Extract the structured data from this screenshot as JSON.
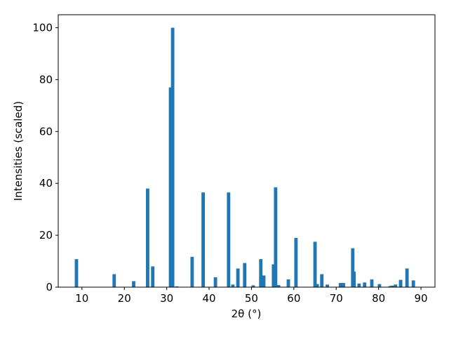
{
  "chart_data": {
    "type": "bar",
    "x_label": "2θ (°)",
    "y_label": "Intensities (scaled)",
    "color": "#1f77b4",
    "x": [
      8.7,
      17.6,
      22.2,
      25.5,
      26.7,
      30.9,
      31.4,
      32.4,
      36.0,
      38.6,
      41.5,
      44.6,
      45.6,
      46.8,
      48.4,
      50.4,
      52.2,
      52.9,
      55.2,
      55.7,
      56.4,
      58.7,
      60.5,
      65.0,
      65.5,
      66.6,
      67.9,
      71.0,
      71.7,
      73.9,
      74.2,
      75.4,
      76.7,
      78.4,
      80.2,
      82.7,
      83.2,
      84.0,
      85.2,
      86.7,
      88.2
    ],
    "values": [
      10.8,
      5,
      2.3,
      38,
      8,
      77,
      100,
      0.3,
      11.7,
      36.5,
      3.8,
      36.5,
      1,
      7.2,
      9.3,
      0.7,
      10.8,
      4.5,
      8.8,
      38.5,
      0.8,
      3,
      19,
      17.5,
      1.2,
      5,
      1,
      1.6,
      1.6,
      15,
      6,
      1.4,
      1.8,
      3,
      1.2,
      0.4,
      0.6,
      1,
      2.8,
      7.2,
      2.6
    ],
    "xlim": [
      4.4,
      93.3
    ],
    "xticks": [
      10,
      20,
      30,
      40,
      50,
      60,
      70,
      80,
      90
    ],
    "ylim": [
      0,
      105
    ],
    "yticks": [
      0,
      20,
      40,
      60,
      80,
      100
    ]
  }
}
